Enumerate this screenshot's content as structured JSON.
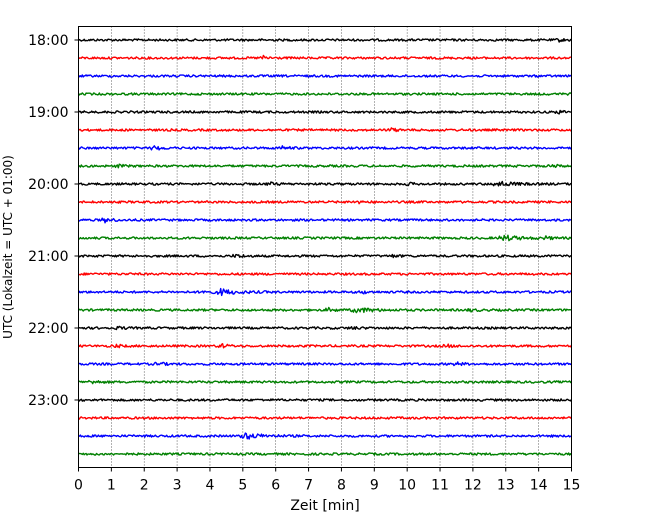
{
  "chart_data": {
    "type": "line",
    "chart_kind": "helicorder seismogram",
    "xlabel": "Zeit  [min]",
    "ylabel": "UTC (Lokalzeit = UTC + 01:00)",
    "xlim": [
      0,
      15
    ],
    "x_ticks": [
      0,
      1,
      2,
      3,
      4,
      5,
      6,
      7,
      8,
      9,
      10,
      11,
      12,
      13,
      14,
      15
    ],
    "x_tick_labels": [
      "0",
      "1",
      "2",
      "3",
      "4",
      "5",
      "6",
      "7",
      "8",
      "9",
      "10",
      "11",
      "12",
      "13",
      "14",
      "15"
    ],
    "y_tick_labels": [
      "18:00",
      "19:00",
      "20:00",
      "21:00",
      "22:00",
      "23:00"
    ],
    "y_tick_rows": [
      0,
      4,
      8,
      12,
      16,
      20
    ],
    "minutes_per_row": 15,
    "start_time": "18:00",
    "row_count": 24,
    "color_cycle": [
      "#000000",
      "#ff0000",
      "#0000ff",
      "#008000"
    ],
    "grid": "vertical dotted at every minute",
    "events": [
      {
        "row": 0,
        "minute": 14.6,
        "amp": 1.2
      },
      {
        "row": 1,
        "minute": 5.6,
        "amp": 1.8
      },
      {
        "row": 4,
        "minute": 14.6,
        "amp": 1.3
      },
      {
        "row": 5,
        "minute": 9.5,
        "amp": 1.4
      },
      {
        "row": 6,
        "minute": 2.3,
        "amp": 2.2
      },
      {
        "row": 6,
        "minute": 6.2,
        "amp": 1.3
      },
      {
        "row": 7,
        "minute": 1.2,
        "amp": 1.1
      },
      {
        "row": 7,
        "minute": 14.4,
        "amp": 1.2
      },
      {
        "row": 8,
        "minute": 5.8,
        "amp": 1.4
      },
      {
        "row": 8,
        "minute": 10.0,
        "amp": 1.1
      },
      {
        "row": 8,
        "minute": 12.7,
        "amp": 2.6
      },
      {
        "row": 9,
        "minute": 8.4,
        "amp": 1.3
      },
      {
        "row": 10,
        "minute": 0.8,
        "amp": 2.2
      },
      {
        "row": 11,
        "minute": 12.9,
        "amp": 2.6
      },
      {
        "row": 11,
        "minute": 14.2,
        "amp": 1.3
      },
      {
        "row": 12,
        "minute": 4.8,
        "amp": 1.6
      },
      {
        "row": 12,
        "minute": 9.5,
        "amp": 1.1
      },
      {
        "row": 14,
        "minute": 3.8,
        "amp": 2.0
      },
      {
        "row": 14,
        "minute": 4.3,
        "amp": 2.8
      },
      {
        "row": 14,
        "minute": 8.6,
        "amp": 1.4
      },
      {
        "row": 15,
        "minute": 7.6,
        "amp": 1.6
      },
      {
        "row": 15,
        "minute": 8.4,
        "amp": 2.6
      },
      {
        "row": 15,
        "minute": 11.9,
        "amp": 1.1
      },
      {
        "row": 16,
        "minute": 1.2,
        "amp": 1.2
      },
      {
        "row": 16,
        "minute": 8.3,
        "amp": 1.1
      },
      {
        "row": 17,
        "minute": 1.1,
        "amp": 1.3
      },
      {
        "row": 17,
        "minute": 4.3,
        "amp": 2.2
      },
      {
        "row": 17,
        "minute": 11.2,
        "amp": 1.2
      },
      {
        "row": 18,
        "minute": 2.4,
        "amp": 1.5
      },
      {
        "row": 18,
        "minute": 11.5,
        "amp": 1.4
      },
      {
        "row": 19,
        "minute": 0.4,
        "amp": 1.6
      },
      {
        "row": 22,
        "minute": 5.0,
        "amp": 3.2
      }
    ]
  }
}
